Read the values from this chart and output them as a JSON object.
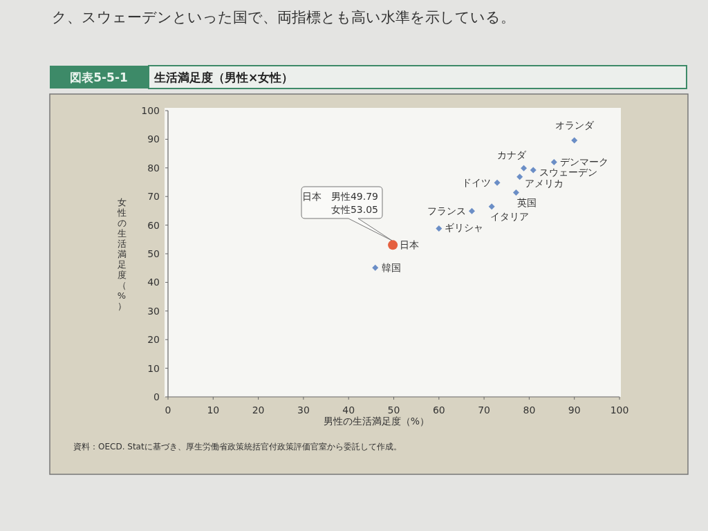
{
  "chart_data": {
    "type": "scatter",
    "title": "生活満足度（男性×女性）",
    "subtitle": "図表5-5-1",
    "xlabel": "男性の生活満足度（%）",
    "ylabel": "女性の生活満足度（%）",
    "xlim": [
      0,
      100
    ],
    "ylim": [
      0,
      100
    ],
    "xticks": [
      0,
      10,
      20,
      30,
      40,
      50,
      60,
      70,
      80,
      90,
      100
    ],
    "yticks": [
      0,
      10,
      20,
      30,
      40,
      50,
      60,
      70,
      80,
      90,
      100
    ],
    "series": [
      {
        "color": "#6b8ec6",
        "marker": "diamond",
        "x": [
          90,
          85.5,
          78.8,
          80.9,
          77.9,
          72.9,
          77.1,
          71.7,
          67.3,
          60,
          45.9
        ],
        "values": [
          89.6,
          82,
          79.9,
          79.2,
          76.9,
          74.8,
          71.4,
          66.5,
          64.9,
          58.8,
          45.1
        ]
      },
      {
        "color": "#e5603f",
        "marker": "circle",
        "x": [
          49.79
        ],
        "values": [
          53.05
        ]
      }
    ],
    "annotations": [
      "ク、スウェーデンといった国で、両指標とも高い水準を示している。",
      "資料：OECD. Statに基づき、厚生労働省政策統括官付政策評価官室から委託して作成。",
      "日本　男性49.79\n女性53.05",
      {
        "text": "オランダ",
        "x": 90,
        "y": 89.6
      },
      {
        "text": "デンマーク",
        "x": 85.5,
        "y": 82
      },
      {
        "text": "カナダ",
        "x": 78.8,
        "y": 79.9
      },
      {
        "text": "スウェーデン",
        "x": 80.9,
        "y": 79.2
      },
      {
        "text": "アメリカ",
        "x": 77.9,
        "y": 76.9
      },
      {
        "text": "ドイツ",
        "x": 72.9,
        "y": 74.8
      },
      {
        "text": "英国",
        "x": 77.1,
        "y": 71.4
      },
      {
        "text": "イタリア",
        "x": 71.7,
        "y": 66.5
      },
      {
        "text": "フランス",
        "x": 67.3,
        "y": 64.9
      },
      {
        "text": "ギリシャ",
        "x": 60,
        "y": 58.8
      },
      {
        "text": "日本",
        "x": 49.79,
        "y": 53.05
      },
      {
        "text": "韓国",
        "x": 45.9,
        "y": 45.1
      }
    ]
  }
}
